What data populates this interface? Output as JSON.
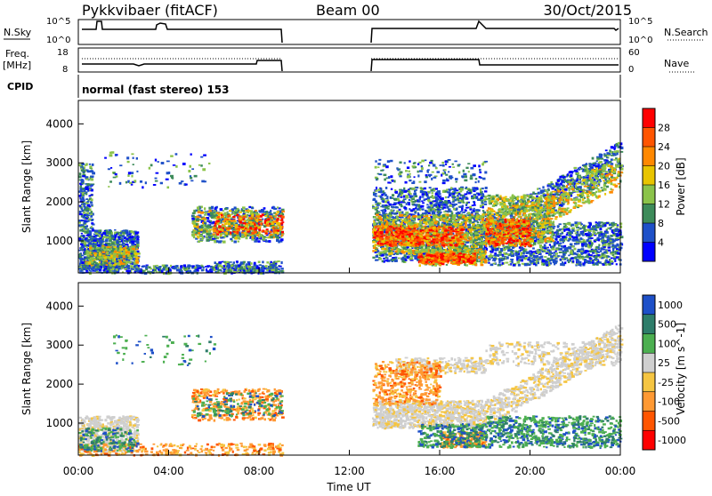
{
  "header": {
    "station": "Pykkvibaer (fitACF)",
    "beam": "Beam 00",
    "date": "30/Oct/2015"
  },
  "panels": {
    "nsky": {
      "left_label": "N.Sky",
      "right_label": "N.Search",
      "left_ticks": [
        "10^5",
        "10^0"
      ],
      "right_ticks": [
        "10^5",
        "10^0"
      ]
    },
    "freq": {
      "left_label_1": "Freq.",
      "left_label_2": "[MHz]",
      "right_label": "Nave",
      "left_ticks": [
        "18",
        "8"
      ],
      "right_ticks": [
        "60",
        "0"
      ]
    },
    "cpid": {
      "label": "CPID",
      "text": "normal (fast stereo) 153"
    }
  },
  "chart_data": [
    {
      "type": "heatmap",
      "name": "power",
      "ylabel": "Slant Range [km]",
      "ylim": [
        180,
        4600
      ],
      "yticks": [
        "1000",
        "2000",
        "3000",
        "4000"
      ],
      "colorbar_label": "Power [dB]",
      "colorbar_ticks": [
        "28",
        "24",
        "20",
        "16",
        "12",
        "8",
        "4"
      ],
      "colors": [
        "#ff0000",
        "#ff5500",
        "#ff8800",
        "#e8c400",
        "#8bc34a",
        "#3d8b5a",
        "#1e50c8",
        "#0000ff"
      ],
      "regions": [
        {
          "t0": 0.0,
          "t1": 2.6,
          "r0": 300,
          "r1": 1900,
          "level": "low-medium"
        },
        {
          "t0": 5.0,
          "t1": 9.0,
          "r0": 800,
          "r1": 2000,
          "level": "medium-high"
        },
        {
          "t0": 13.0,
          "t1": 18.0,
          "r0": 600,
          "r1": 2300,
          "level": "high"
        },
        {
          "t0": 18.0,
          "t1": 24.0,
          "r0": 400,
          "r1": 3100,
          "level": "medium-high"
        }
      ]
    },
    {
      "type": "heatmap",
      "name": "velocity",
      "ylabel": "Slant Range [km]",
      "ylim": [
        180,
        4600
      ],
      "yticks": [
        "1000",
        "2000",
        "3000",
        "4000"
      ],
      "colorbar_label": "Velocity [m s^-1]",
      "colorbar_ticks": [
        "1000",
        "500",
        "100",
        "25",
        "-25",
        "-100",
        "-500",
        "-1000"
      ],
      "colors": [
        "#1e50c8",
        "#2e7d6a",
        "#4caf50",
        "#cfcfcf",
        "#f5c542",
        "#ff9933",
        "#ff5500",
        "#ff0000"
      ]
    }
  ],
  "xaxis": {
    "label": "Time UT",
    "ticks": [
      "00:00",
      "04:00",
      "08:00",
      "12:00",
      "16:00",
      "20:00",
      "00:00"
    ]
  }
}
